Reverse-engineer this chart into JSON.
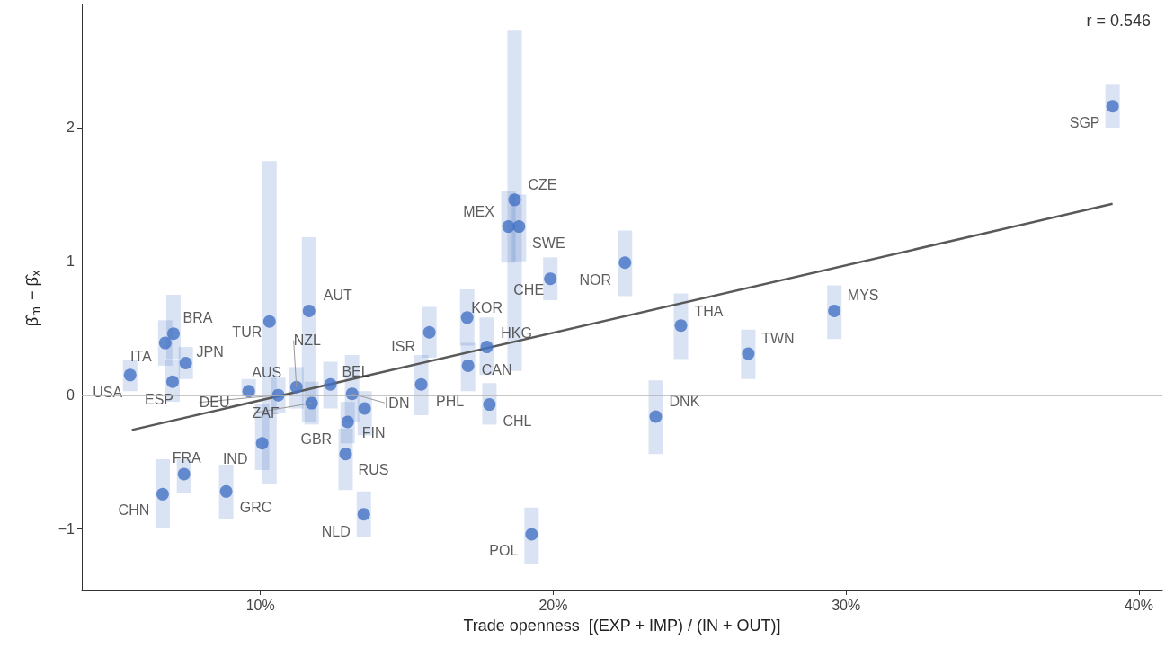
{
  "chart_data": {
    "type": "scatter",
    "xlabel": "Trade openness  [(EXP + IMP) / (IN + OUT)]",
    "ylabel": "β̂$_{m}$ − β̂$_{x}$",
    "xlim": [
      3.9,
      40.8
    ],
    "ylim": [
      -1.46,
      2.92
    ],
    "xticks": [
      {
        "value": 10,
        "label": "10%"
      },
      {
        "value": 20,
        "label": "20%"
      },
      {
        "value": 30,
        "label": "30%"
      },
      {
        "value": 40,
        "label": "40%"
      }
    ],
    "yticks": [
      {
        "value": -1,
        "label": "−1"
      },
      0,
      1,
      2
    ],
    "grid": false,
    "legend": false,
    "marker": "circle",
    "series": [
      {
        "color": "#4472c4",
        "x": [
          5.55,
          6.75,
          7.0,
          7.03,
          7.45,
          9.6,
          10.61,
          10.31,
          10.06,
          11.66,
          11.23,
          11.75,
          12.39,
          13.13,
          13.56,
          12.98,
          12.91,
          13.53,
          6.66,
          7.39,
          8.83,
          15.77,
          15.49,
          17.06,
          17.09,
          17.73,
          17.82,
          18.47,
          18.68,
          18.83,
          19.9,
          22.45,
          19.26,
          23.5,
          24.36,
          26.66,
          29.6,
          39.1
        ],
        "values": [
          0.15,
          0.39,
          0.1,
          0.46,
          0.24,
          0.03,
          0.0,
          0.55,
          -0.36,
          0.63,
          0.06,
          -0.06,
          0.08,
          0.01,
          -0.1,
          -0.2,
          -0.44,
          -0.89,
          -0.74,
          -0.59,
          -0.72,
          0.47,
          0.08,
          0.58,
          0.22,
          0.36,
          -0.07,
          1.26,
          1.46,
          1.26,
          0.87,
          0.99,
          -1.04,
          -0.16,
          0.52,
          0.31,
          0.63,
          2.16
        ],
        "errors": [
          [
            0.03,
            0.26
          ],
          [
            0.22,
            0.56
          ],
          [
            -0.05,
            0.26
          ],
          [
            0.27,
            0.75
          ],
          [
            0.12,
            0.36
          ],
          [
            -0.01,
            0.12
          ],
          [
            -0.13,
            0.13
          ],
          [
            -0.66,
            1.75
          ],
          [
            -0.56,
            -0.07
          ],
          [
            -0.2,
            1.18
          ],
          [
            -0.1,
            0.21
          ],
          [
            -0.22,
            0.1
          ],
          [
            -0.1,
            0.25
          ],
          [
            -0.2,
            0.3
          ],
          [
            -0.3,
            0.03
          ],
          [
            -0.36,
            -0.05
          ],
          [
            -0.71,
            -0.25
          ],
          [
            -1.06,
            -0.72
          ],
          [
            -0.99,
            -0.48
          ],
          [
            -0.73,
            -0.48
          ],
          [
            -0.93,
            -0.52
          ],
          [
            0.28,
            0.66
          ],
          [
            -0.15,
            0.3
          ],
          [
            0.37,
            0.79
          ],
          [
            0.03,
            0.39
          ],
          [
            0.15,
            0.58
          ],
          [
            -0.22,
            0.09
          ],
          [
            0.99,
            1.53
          ],
          [
            0.18,
            2.73
          ],
          [
            1.0,
            1.5
          ],
          [
            0.71,
            1.03
          ],
          [
            0.74,
            1.23
          ],
          [
            -1.26,
            -0.84
          ],
          [
            -0.44,
            0.11
          ],
          [
            0.27,
            0.76
          ],
          [
            0.12,
            0.49
          ],
          [
            0.42,
            0.82
          ],
          [
            2.0,
            2.32
          ]
        ]
      },
      {
        "type": "line",
        "color": "#595959",
        "marker": "none",
        "x": [
          5.61,
          39.1
        ],
        "values": [
          -0.26,
          1.43
        ]
      }
    ],
    "ref_lines": [
      {
        "axis": "y",
        "value": 0,
        "color": "#b3b3b3"
      }
    ],
    "annotations": [
      {
        "text": "USA",
        "x": 5.55,
        "y": 0.15
      },
      {
        "text": "ITA",
        "x": 6.75,
        "y": 0.39
      },
      {
        "text": "ESP",
        "x": 7.0,
        "y": 0.1
      },
      {
        "text": "BRA",
        "x": 7.03,
        "y": 0.46
      },
      {
        "text": "JPN",
        "x": 7.45,
        "y": 0.24
      },
      {
        "text": "AUS",
        "x": 9.6,
        "y": 0.03
      },
      {
        "text": "DEU",
        "x": 10.61,
        "y": 0.0
      },
      {
        "text": "TUR",
        "x": 10.31,
        "y": 0.55
      },
      {
        "text": "IND",
        "x": 10.06,
        "y": -0.36
      },
      {
        "text": "AUT",
        "x": 11.66,
        "y": 0.63
      },
      {
        "text": "NZL",
        "x": 11.23,
        "y": 0.06
      },
      {
        "text": "ZAF",
        "x": 11.75,
        "y": -0.06
      },
      {
        "text": "BEL",
        "x": 12.39,
        "y": 0.08
      },
      {
        "text": "IDN",
        "x": 13.13,
        "y": 0.01
      },
      {
        "text": "FIN",
        "x": 13.56,
        "y": -0.1
      },
      {
        "text": "GBR",
        "x": 12.98,
        "y": -0.2
      },
      {
        "text": "RUS",
        "x": 12.91,
        "y": -0.44
      },
      {
        "text": "NLD",
        "x": 13.53,
        "y": -0.89
      },
      {
        "text": "CHN",
        "x": 6.66,
        "y": -0.74
      },
      {
        "text": "FRA",
        "x": 7.39,
        "y": -0.59
      },
      {
        "text": "GRC",
        "x": 8.83,
        "y": -0.72
      },
      {
        "text": "ISR",
        "x": 15.77,
        "y": 0.47
      },
      {
        "text": "PHL",
        "x": 15.49,
        "y": 0.08
      },
      {
        "text": "KOR",
        "x": 17.06,
        "y": 0.58
      },
      {
        "text": "CAN",
        "x": 17.09,
        "y": 0.22
      },
      {
        "text": "HKG",
        "x": 17.73,
        "y": 0.36
      },
      {
        "text": "CHL",
        "x": 17.82,
        "y": -0.07
      },
      {
        "text": "MEX",
        "x": 18.47,
        "y": 1.26
      },
      {
        "text": "CZE",
        "x": 18.68,
        "y": 1.46
      },
      {
        "text": "SWE",
        "x": 18.83,
        "y": 1.26
      },
      {
        "text": "CHE",
        "x": 19.9,
        "y": 0.87
      },
      {
        "text": "NOR",
        "x": 22.45,
        "y": 0.99
      },
      {
        "text": "POL",
        "x": 19.26,
        "y": -1.04
      },
      {
        "text": "DNK",
        "x": 23.5,
        "y": -0.16
      },
      {
        "text": "THA",
        "x": 24.36,
        "y": 0.52
      },
      {
        "text": "TWN",
        "x": 26.66,
        "y": 0.31
      },
      {
        "text": "MYS",
        "x": 29.6,
        "y": 0.63
      },
      {
        "text": "SGP",
        "x": 39.1,
        "y": 2.16
      },
      "r = 0.546"
    ]
  }
}
